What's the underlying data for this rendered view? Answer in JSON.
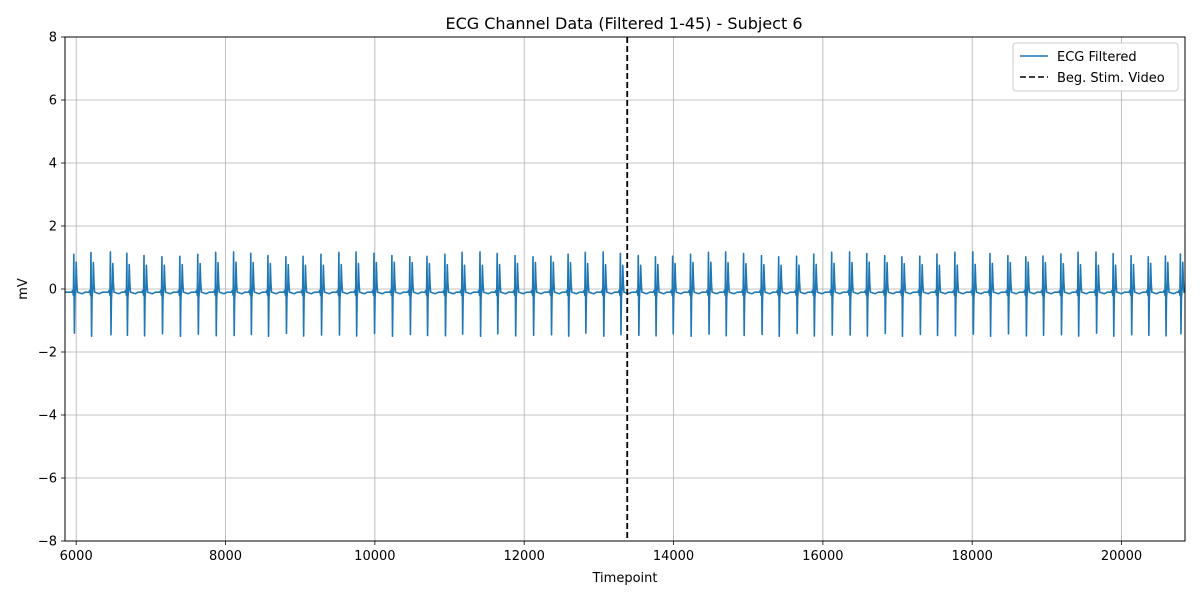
{
  "chart_data": {
    "type": "line",
    "title": "ECG Channel Data (Filtered 1-45) - Subject 6",
    "xlabel": "Timepoint",
    "ylabel": "mV",
    "xlim": [
      5850,
      20850
    ],
    "ylim": [
      -8,
      8
    ],
    "x_ticks": [
      6000,
      8000,
      10000,
      12000,
      14000,
      16000,
      18000,
      20000
    ],
    "x_tick_labels": [
      "6000",
      "8000",
      "10000",
      "12000",
      "14000",
      "16000",
      "18000",
      "20000"
    ],
    "y_ticks": [
      -8,
      -6,
      -4,
      -2,
      0,
      2,
      4,
      6,
      8
    ],
    "y_tick_labels": [
      "−8",
      "−6",
      "−4",
      "−2",
      "0",
      "2",
      "4",
      "6",
      "8"
    ],
    "grid": true,
    "legend_position": "top-right",
    "series": [
      {
        "name": "ECG Filtered",
        "color": "#1f77b4",
        "style": "solid",
        "beat_interval": 237,
        "r_peaks_x": [
          5980,
          6210,
          6470,
          6690,
          6920,
          7160,
          7400,
          7640,
          7880,
          8120,
          8350,
          8580,
          8820,
          9050,
          9290,
          9530,
          9760,
          10000,
          10240,
          10480,
          10710,
          10950,
          11180,
          11420,
          11650,
          11890,
          12130,
          12370,
          12600,
          12830,
          13070,
          13300,
          13540,
          13770,
          14000,
          14240,
          14480,
          14710,
          14950,
          15190,
          15420,
          15660,
          15890,
          16130,
          16370,
          16600,
          16840,
          17070,
          17310,
          17540,
          17780,
          18020,
          18250,
          18490,
          18730,
          18960,
          19200,
          19430,
          19670,
          19900,
          20140,
          20370,
          20600,
          20800
        ],
        "r_peak_mv": 1.1,
        "s_trough_mv": -1.4,
        "t_wave_mv": 0.8,
        "baseline_mv": -0.1
      },
      {
        "name": "Beg. Stim. Video",
        "color": "#000000",
        "style": "dashed",
        "x": 13380
      }
    ]
  }
}
